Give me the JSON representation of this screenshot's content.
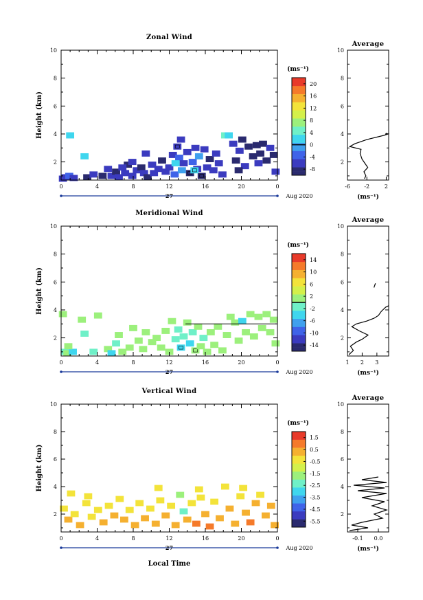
{
  "x_labels": {
    "month": "Aug 2020",
    "day": "27",
    "xlabel": "Local Time"
  },
  "chart_data": [
    {
      "type": "heatmap",
      "title": "Zonal Wind",
      "ylabel": "Height (km)",
      "xlim": [
        0,
        24
      ],
      "ylim": [
        0.7,
        10
      ],
      "xticks": [
        "0",
        "4",
        "8",
        "12",
        "16",
        "20",
        "0"
      ],
      "yticks": [
        "2",
        "4",
        "6",
        "8",
        "10"
      ],
      "colorbar": {
        "unit": "(ms⁻¹)",
        "ticks": [
          "20",
          "16",
          "12",
          "8",
          "4",
          "0",
          "-4",
          "-8"
        ],
        "min": -10,
        "max": 22,
        "zero_line": 0
      },
      "cells": [
        [
          0.2,
          0.8,
          -6
        ],
        [
          0.5,
          0.9,
          -5
        ],
        [
          0.9,
          1.0,
          -4
        ],
        [
          1.4,
          0.85,
          -6
        ],
        [
          1.0,
          3.9,
          2
        ],
        [
          2.6,
          2.4,
          3
        ],
        [
          2.9,
          0.9,
          -8
        ],
        [
          3.6,
          1.1,
          -7
        ],
        [
          4.6,
          1.0,
          -8
        ],
        [
          5.2,
          1.5,
          -6
        ],
        [
          5.6,
          1.0,
          -7
        ],
        [
          6.1,
          1.3,
          -8
        ],
        [
          6.4,
          0.9,
          -6
        ],
        [
          7.1,
          1.2,
          -7
        ],
        [
          7.4,
          1.8,
          -8
        ],
        [
          7.9,
          2.0,
          -5
        ],
        [
          7.9,
          1.0,
          -6
        ],
        [
          8.4,
          1.4,
          -7
        ],
        [
          8.9,
          1.6,
          -8
        ],
        [
          9.2,
          1.2,
          -6
        ],
        [
          9.4,
          2.6,
          -7
        ],
        [
          9.6,
          0.9,
          -8
        ],
        [
          10.1,
          1.8,
          -6
        ],
        [
          10.3,
          1.2,
          -7
        ],
        [
          10.8,
          1.5,
          -5
        ],
        [
          11.2,
          2.1,
          -8
        ],
        [
          11.6,
          1.3,
          -7
        ],
        [
          12.0,
          1.6,
          -6
        ],
        [
          12.4,
          2.5,
          -5
        ],
        [
          12.6,
          1.1,
          -4
        ],
        [
          12.9,
          3.1,
          -7
        ],
        [
          13.1,
          2.3,
          -3
        ],
        [
          13.4,
          1.4,
          -2
        ],
        [
          13.6,
          1.9,
          -6
        ],
        [
          14.0,
          2.7,
          -7
        ],
        [
          14.3,
          1.2,
          -8
        ],
        [
          14.6,
          2.0,
          -3
        ],
        [
          14.9,
          3.0,
          -6
        ],
        [
          15.1,
          1.5,
          -7
        ],
        [
          15.3,
          2.4,
          -2
        ],
        [
          15.6,
          1.0,
          -8
        ],
        [
          15.9,
          2.9,
          -7
        ],
        [
          16.2,
          1.6,
          -6
        ],
        [
          16.5,
          2.2,
          -8
        ],
        [
          16.9,
          1.4,
          -7
        ],
        [
          17.2,
          2.6,
          -6
        ],
        [
          17.5,
          1.9,
          -5
        ],
        [
          17.9,
          1.1,
          -7
        ],
        [
          18.2,
          3.9,
          4
        ],
        [
          18.6,
          3.9,
          3
        ],
        [
          19.1,
          3.3,
          -6
        ],
        [
          19.4,
          2.1,
          -8
        ],
        [
          19.8,
          2.8,
          -7
        ],
        [
          20.1,
          3.6,
          -9
        ],
        [
          20.4,
          1.7,
          -7
        ],
        [
          20.8,
          3.1,
          -8
        ],
        [
          21.3,
          2.4,
          -9
        ],
        [
          21.7,
          3.2,
          -8
        ],
        [
          22.1,
          2.6,
          -9
        ],
        [
          22.4,
          3.3,
          -8
        ],
        [
          22.8,
          2.1,
          -9
        ],
        [
          23.2,
          3.0,
          -7
        ],
        [
          23.6,
          2.5,
          -8
        ],
        [
          23.8,
          1.3,
          -7
        ],
        [
          13.3,
          3.6,
          -6
        ],
        [
          14.8,
          1.4,
          2
        ],
        [
          12.7,
          1.9,
          1
        ],
        [
          19.7,
          1.4,
          -8
        ],
        [
          21.9,
          1.9,
          -7
        ],
        [
          6.8,
          1.6,
          -7
        ]
      ],
      "profile": {
        "xlim": [
          -6,
          2.5
        ],
        "xticks": [
          "-6",
          "-2",
          "2"
        ],
        "yticks": [
          "2",
          "4",
          "6",
          "8",
          "10"
        ],
        "xlabel": "(ms⁻¹)",
        "title": "Average",
        "points": [
          [
            -2.5,
            0.8
          ],
          [
            -2.2,
            1.0
          ],
          [
            -2.6,
            1.3
          ],
          [
            -1.8,
            1.6
          ],
          [
            -2.4,
            1.9
          ],
          [
            -3.0,
            2.2
          ],
          [
            -3.4,
            2.6
          ],
          [
            -3.2,
            2.9
          ],
          [
            -5.5,
            3.1
          ],
          [
            -4.5,
            3.3
          ],
          [
            -2.0,
            3.6
          ],
          [
            1.5,
            3.9
          ],
          [
            2.4,
            4.0
          ],
          [
            1.9,
            4.05
          ]
        ]
      }
    },
    {
      "type": "heatmap",
      "title": "Meridional Wind",
      "ylabel": "Height (km)",
      "xlim": [
        0,
        24
      ],
      "ylim": [
        0.7,
        10
      ],
      "xticks": [
        "0",
        "4",
        "8",
        "12",
        "16",
        "20",
        "0"
      ],
      "yticks": [
        "2",
        "4",
        "6",
        "8",
        "10"
      ],
      "colorbar": {
        "unit": "(ms⁻¹)",
        "ticks": [
          "14",
          "10",
          "6",
          "2",
          "-2",
          "-6",
          "-10",
          "-14"
        ],
        "min": -16,
        "max": 16,
        "zero_line": 0
      },
      "cells": [
        [
          0.2,
          3.7,
          2
        ],
        [
          0.4,
          1.0,
          -2
        ],
        [
          0.7,
          0.9,
          1
        ],
        [
          1.3,
          1.0,
          -4
        ],
        [
          2.3,
          3.3,
          1
        ],
        [
          2.6,
          2.3,
          -1
        ],
        [
          3.6,
          1.0,
          -1
        ],
        [
          4.1,
          3.6,
          2
        ],
        [
          5.2,
          1.2,
          0
        ],
        [
          5.6,
          0.9,
          -4
        ],
        [
          6.1,
          1.6,
          -1
        ],
        [
          6.4,
          2.2,
          0
        ],
        [
          7.6,
          1.3,
          1
        ],
        [
          8.0,
          2.7,
          2
        ],
        [
          8.6,
          1.8,
          0
        ],
        [
          9.1,
          1.2,
          1
        ],
        [
          9.4,
          2.4,
          0
        ],
        [
          10.1,
          1.7,
          1
        ],
        [
          10.6,
          2.0,
          2
        ],
        [
          11.1,
          1.3,
          0
        ],
        [
          11.6,
          2.5,
          1
        ],
        [
          12.0,
          1.0,
          2
        ],
        [
          12.3,
          3.2,
          0
        ],
        [
          12.7,
          1.9,
          -1
        ],
        [
          13.0,
          2.6,
          -2
        ],
        [
          13.3,
          1.3,
          -4
        ],
        [
          13.6,
          2.1,
          -1
        ],
        [
          14.0,
          3.1,
          0
        ],
        [
          14.3,
          1.6,
          -3
        ],
        [
          14.6,
          2.4,
          -2
        ],
        [
          14.9,
          1.1,
          1
        ],
        [
          15.2,
          2.8,
          0
        ],
        [
          15.5,
          1.4,
          2
        ],
        [
          15.8,
          2.0,
          -1
        ],
        [
          16.2,
          1.0,
          1
        ],
        [
          16.6,
          2.4,
          0
        ],
        [
          17.0,
          1.5,
          1
        ],
        [
          17.4,
          2.8,
          2
        ],
        [
          17.9,
          1.1,
          0
        ],
        [
          18.4,
          2.2,
          1
        ],
        [
          18.8,
          3.5,
          0
        ],
        [
          19.3,
          3.1,
          2
        ],
        [
          19.7,
          1.8,
          0
        ],
        [
          20.1,
          3.2,
          -4
        ],
        [
          20.5,
          2.4,
          1
        ],
        [
          21.0,
          3.7,
          2
        ],
        [
          21.4,
          2.1,
          1
        ],
        [
          21.9,
          3.5,
          2
        ],
        [
          22.3,
          2.7,
          0
        ],
        [
          22.8,
          3.7,
          2
        ],
        [
          23.2,
          2.4,
          1
        ],
        [
          23.6,
          3.3,
          2
        ],
        [
          23.8,
          1.6,
          0
        ],
        [
          0.8,
          1.4,
          0
        ],
        [
          6.8,
          1.0,
          0
        ]
      ],
      "profile": {
        "xlim": [
          1,
          3.8
        ],
        "xticks": [
          "1",
          "2",
          "3"
        ],
        "yticks": [
          "2",
          "4",
          "6",
          "8",
          "10"
        ],
        "xlabel": "(ms⁻¹)",
        "title": "Average",
        "points": [
          [
            1.1,
            0.8
          ],
          [
            1.4,
            1.1
          ],
          [
            1.2,
            1.4
          ],
          [
            1.6,
            1.7
          ],
          [
            2.0,
            1.9
          ],
          [
            2.4,
            2.2
          ],
          [
            1.8,
            2.5
          ],
          [
            1.3,
            2.8
          ],
          [
            1.6,
            3.0
          ],
          [
            2.3,
            3.2
          ],
          [
            2.8,
            3.4
          ],
          [
            3.1,
            3.6
          ],
          [
            3.3,
            3.9
          ],
          [
            3.6,
            4.2
          ],
          [
            3.8,
            4.3
          ]
        ],
        "segment": [
          [
            2.8,
            5.6
          ],
          [
            2.9,
            5.9
          ]
        ]
      }
    },
    {
      "type": "heatmap",
      "title": "Vertical Wind",
      "ylabel": "Height (km)",
      "xlim": [
        0,
        24
      ],
      "ylim": [
        0.7,
        10
      ],
      "xticks": [
        "0",
        "4",
        "8",
        "12",
        "16",
        "20",
        "0"
      ],
      "yticks": [
        "2",
        "4",
        "6",
        "8",
        "10"
      ],
      "colorbar": {
        "unit": "(ms⁻¹)",
        "ticks": [
          "1.5",
          "0.5",
          "-0.5",
          "-1.5",
          "-2.5",
          "-3.5",
          "-4.5",
          "-5.5"
        ],
        "min": -6.5,
        "max": 2.2,
        "zero_line": null
      },
      "cells": [
        [
          0.3,
          2.4,
          -0.2
        ],
        [
          0.8,
          1.6,
          0.2
        ],
        [
          1.5,
          2.0,
          -0.4
        ],
        [
          2.1,
          1.2,
          0.1
        ],
        [
          2.8,
          2.8,
          -0.3
        ],
        [
          3.4,
          1.8,
          -0.1
        ],
        [
          4.1,
          2.3,
          0.0
        ],
        [
          4.7,
          1.4,
          0.3
        ],
        [
          5.3,
          2.6,
          -0.2
        ],
        [
          5.9,
          1.9,
          0.1
        ],
        [
          6.5,
          3.1,
          -0.4
        ],
        [
          7.0,
          1.6,
          0.2
        ],
        [
          7.6,
          2.3,
          -0.1
        ],
        [
          8.2,
          1.2,
          0.4
        ],
        [
          8.7,
          2.8,
          -0.3
        ],
        [
          9.3,
          1.7,
          0.5
        ],
        [
          9.9,
          2.4,
          0.0
        ],
        [
          10.5,
          1.3,
          0.6
        ],
        [
          11.0,
          3.0,
          -0.2
        ],
        [
          11.6,
          1.9,
          0.3
        ],
        [
          12.2,
          2.6,
          -0.5
        ],
        [
          12.7,
          1.2,
          0.7
        ],
        [
          13.2,
          3.4,
          -1.5
        ],
        [
          13.6,
          2.2,
          -2.3
        ],
        [
          14.0,
          1.6,
          0.4
        ],
        [
          14.5,
          2.8,
          -0.1
        ],
        [
          15.0,
          1.3,
          0.8
        ],
        [
          15.5,
          3.2,
          0.0
        ],
        [
          16.0,
          2.0,
          0.5
        ],
        [
          16.5,
          1.1,
          0.9
        ],
        [
          17.0,
          2.9,
          -0.2
        ],
        [
          17.6,
          1.7,
          0.3
        ],
        [
          18.2,
          4.0,
          0.0
        ],
        [
          18.7,
          2.4,
          0.6
        ],
        [
          19.3,
          1.3,
          0.2
        ],
        [
          19.9,
          3.3,
          -0.3
        ],
        [
          20.5,
          2.1,
          0.5
        ],
        [
          21.0,
          1.4,
          0.8
        ],
        [
          21.6,
          2.8,
          0.1
        ],
        [
          22.1,
          3.4,
          -0.4
        ],
        [
          22.7,
          1.9,
          0.6
        ],
        [
          23.3,
          2.6,
          0.2
        ],
        [
          23.7,
          1.2,
          0.4
        ],
        [
          1.1,
          3.5,
          -0.1
        ],
        [
          3.0,
          3.3,
          0.0
        ],
        [
          10.8,
          3.9,
          -0.3
        ],
        [
          15.3,
          3.8,
          -0.2
        ],
        [
          20.2,
          3.9,
          -0.1
        ]
      ],
      "profile": {
        "xlim": [
          -0.15,
          0.05
        ],
        "xticks": [
          "-0.1",
          "0.0"
        ],
        "yticks": [
          "2",
          "4",
          "6",
          "8",
          "10"
        ],
        "xlabel": "(ms⁻¹)",
        "title": "Average",
        "points": [
          [
            -0.14,
            0.8
          ],
          [
            -0.05,
            1.0
          ],
          [
            -0.13,
            1.2
          ],
          [
            -0.08,
            1.4
          ],
          [
            0.02,
            1.7
          ],
          [
            -0.02,
            2.0
          ],
          [
            0.04,
            2.3
          ],
          [
            -0.03,
            2.6
          ],
          [
            0.03,
            2.9
          ],
          [
            -0.08,
            3.2
          ],
          [
            0.04,
            3.5
          ],
          [
            -0.1,
            3.7
          ],
          [
            0.03,
            3.9
          ],
          [
            -0.12,
            4.1
          ],
          [
            0.04,
            4.3
          ],
          [
            -0.08,
            4.5
          ],
          [
            0.0,
            4.7
          ]
        ]
      }
    }
  ]
}
